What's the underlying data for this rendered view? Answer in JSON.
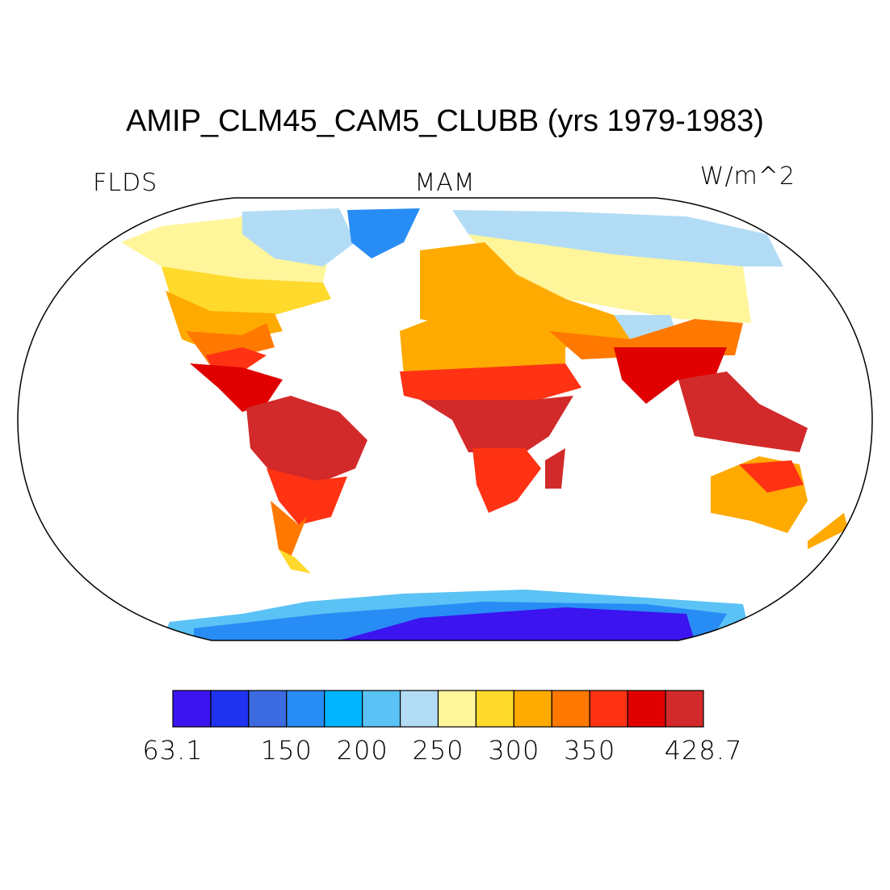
{
  "map": {
    "title": "AMIP_CLM45_CAM5_CLUBB (yrs 1979-1983)",
    "left_label": "FLDS",
    "center_label": "MAM",
    "right_label": "W/m^2",
    "colorbar": {
      "colors": [
        "#3c14f0",
        "#1e32f0",
        "#3c6ae0",
        "#288cf5",
        "#00b4ff",
        "#5ac2f5",
        "#b2dcf5",
        "#fff59a",
        "#ffd92c",
        "#ffaa00",
        "#ff7800",
        "#ff3214",
        "#e00000",
        "#d22a2a"
      ],
      "ticks": [
        63.1,
        150,
        200,
        250,
        300,
        350,
        428.7
      ]
    }
  }
}
